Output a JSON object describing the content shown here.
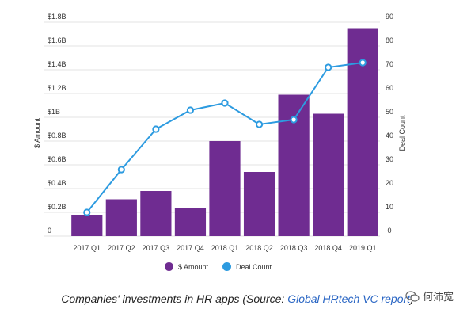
{
  "chart_data": {
    "type": "bar",
    "categories": [
      "2017 Q1",
      "2017 Q2",
      "2017 Q3",
      "2017 Q4",
      "2018 Q1",
      "2018 Q2",
      "2018 Q3",
      "2018 Q4",
      "2019 Q1"
    ],
    "series": [
      {
        "name": "$ Amount",
        "type": "bar",
        "axis": "left",
        "color": "#6f2c91",
        "values": [
          0.18,
          0.31,
          0.38,
          0.24,
          0.8,
          0.54,
          1.19,
          1.03,
          1.75
        ]
      },
      {
        "name": "Deal Count",
        "type": "line",
        "axis": "right",
        "color": "#2d9be0",
        "values": [
          10,
          28,
          45,
          53,
          56,
          47,
          49,
          71,
          73
        ]
      }
    ],
    "ylabel": "$ Amount",
    "y2label": "Deal Count",
    "ylim": [
      0,
      1.8
    ],
    "y2lim": [
      0,
      90
    ],
    "yticks": [
      {
        "label": "0",
        "value": 0
      },
      {
        "label": "$0.2B",
        "value": 0.2
      },
      {
        "label": "$0.4B",
        "value": 0.4
      },
      {
        "label": "$0.6B",
        "value": 0.6
      },
      {
        "label": "$0.8B",
        "value": 0.8
      },
      {
        "label": "$1B",
        "value": 1.0
      },
      {
        "label": "$1.2B",
        "value": 1.2
      },
      {
        "label": "$1.4B",
        "value": 1.4
      },
      {
        "label": "$1.6B",
        "value": 1.6
      },
      {
        "label": "$1.8B",
        "value": 1.8
      }
    ],
    "y2ticks": [
      0,
      10,
      20,
      30,
      40,
      50,
      60,
      70,
      80,
      90
    ],
    "grid": true,
    "legend": "bottom-center"
  },
  "legend": {
    "amount_label": "$ Amount",
    "count_label": "Deal Count"
  },
  "caption": {
    "prefix": "Companies' investments in HR apps (Source: ",
    "link": "Global HRtech VC report",
    "suffix": ")"
  },
  "watermark": {
    "text": "何沛宽"
  },
  "colors": {
    "bar": "#6f2c91",
    "line": "#2d9be0",
    "grid": "#e3e3e3",
    "link": "#2a66c4"
  }
}
